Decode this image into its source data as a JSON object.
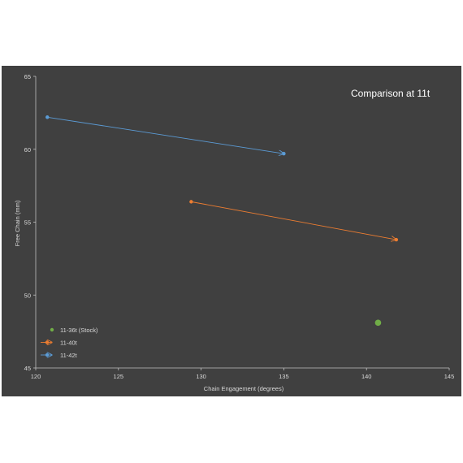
{
  "chart_data": {
    "type": "scatter",
    "title": "Comparison at 11t",
    "xlabel": "Chain Engagement  (degrees)",
    "ylabel": "Free Chain (mm)",
    "xlim": [
      120,
      145
    ],
    "ylim": [
      45,
      65
    ],
    "x_ticks": [
      "120",
      "125",
      "130",
      "135",
      "140",
      "145"
    ],
    "y_ticks": [
      "45",
      "50",
      "55",
      "60",
      "65"
    ],
    "grid": false,
    "legend_position": "bottom-left",
    "series": [
      {
        "name": "11-36t (Stock)",
        "color": "#70ad47",
        "style": "marker",
        "points": [
          {
            "x": 140.7,
            "y": 48.1
          }
        ]
      },
      {
        "name": "11-40t",
        "color": "#ed7d31",
        "style": "arrow",
        "points": [
          {
            "x": 129.4,
            "y": 56.4
          },
          {
            "x": 141.8,
            "y": 53.8
          }
        ]
      },
      {
        "name": "11-42t",
        "color": "#5b9bd5",
        "style": "arrow",
        "points": [
          {
            "x": 120.7,
            "y": 62.2
          },
          {
            "x": 135.0,
            "y": 59.7
          }
        ]
      }
    ]
  }
}
